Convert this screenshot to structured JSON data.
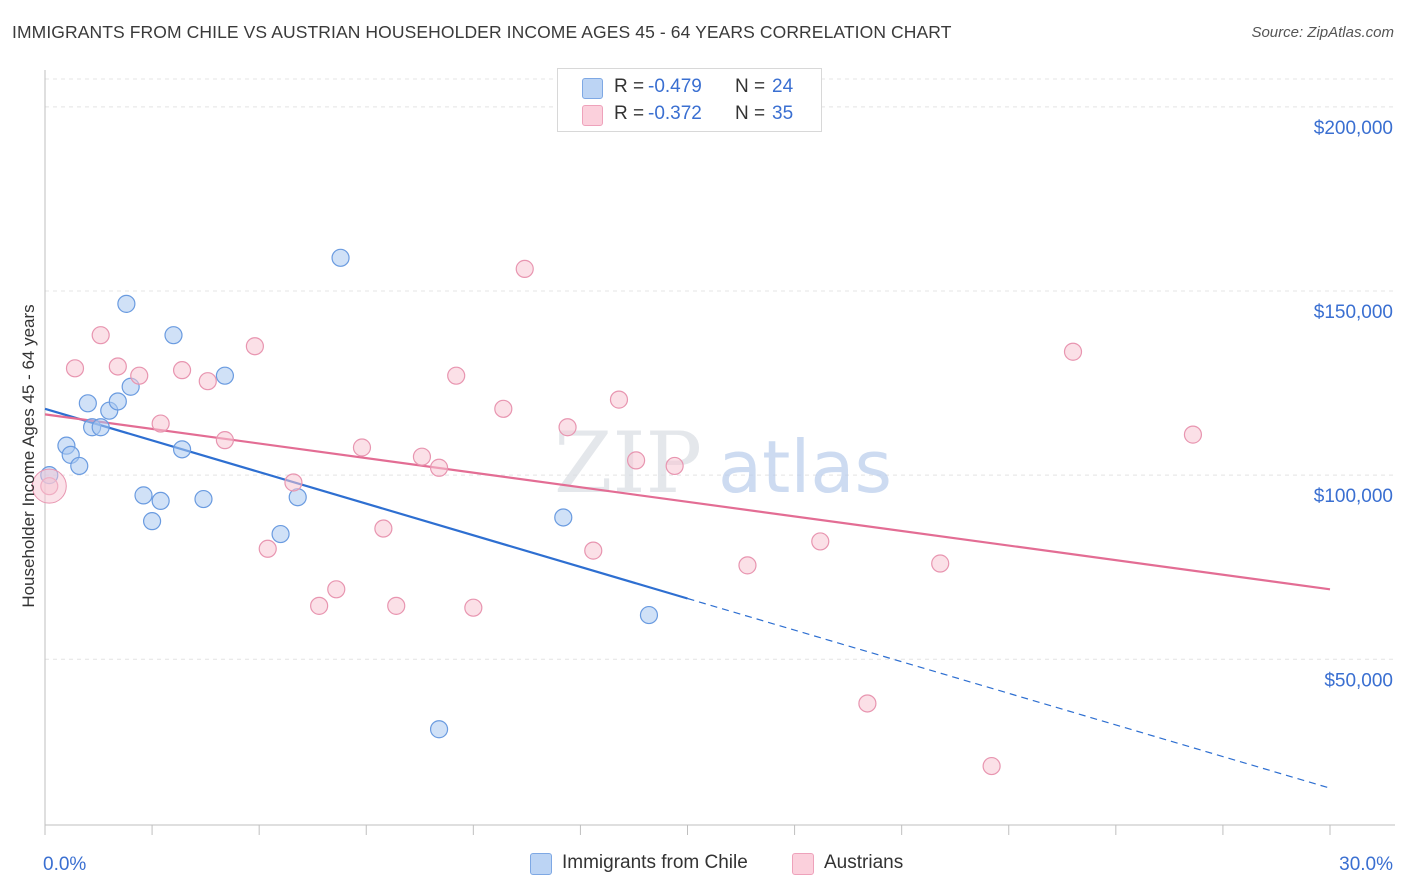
{
  "title": "IMMIGRANTS FROM CHILE VS AUSTRIAN HOUSEHOLDER INCOME AGES 45 - 64 YEARS CORRELATION CHART",
  "source": "Source: ZipAtlas.com",
  "watermark": {
    "zip": "ZIP",
    "atlas": "atlas"
  },
  "legend": {
    "r_label": "R =",
    "n_label": "N =",
    "rows": [
      {
        "r_value": "-0.479",
        "n_value": "24"
      },
      {
        "r_value": "-0.372",
        "n_value": "35"
      }
    ]
  },
  "chart_data": {
    "type": "scatter",
    "ylabel": "Householder Income Ages 45 - 64 years",
    "xlim": [
      0,
      30
    ],
    "ylim": [
      5000,
      210000
    ],
    "x_tick_labels": [
      "0.0%",
      "30.0%"
    ],
    "y_ticks": [
      50000,
      100000,
      150000,
      200000
    ],
    "y_tick_labels": [
      "$50,000",
      "$100,000",
      "$150,000",
      "$200,000"
    ],
    "grid": true,
    "legend_position": "bottom",
    "series": [
      {
        "name": "Immigrants from Chile",
        "color": "#a9c8f0",
        "stroke": "#6a9be0",
        "line_color": "#2e6fd1",
        "points": [
          [
            0.1,
            100000
          ],
          [
            0.5,
            108000
          ],
          [
            0.6,
            105500
          ],
          [
            0.8,
            102500
          ],
          [
            1.0,
            119500
          ],
          [
            1.1,
            113000
          ],
          [
            1.3,
            113000
          ],
          [
            1.5,
            117500
          ],
          [
            1.7,
            120000
          ],
          [
            1.9,
            146500
          ],
          [
            2.0,
            124000
          ],
          [
            2.3,
            94500
          ],
          [
            2.5,
            87500
          ],
          [
            2.7,
            93000
          ],
          [
            3.0,
            138000
          ],
          [
            3.2,
            107000
          ],
          [
            3.7,
            93500
          ],
          [
            4.2,
            127000
          ],
          [
            5.5,
            84000
          ],
          [
            5.9,
            94000
          ],
          [
            6.9,
            159000
          ],
          [
            9.2,
            31000
          ],
          [
            12.1,
            88500
          ],
          [
            14.1,
            62000
          ]
        ],
        "trend": {
          "x0": 0,
          "y0": 118000,
          "x1": 15.0,
          "y1": 66500,
          "dash_to_x": 30,
          "dash_to_y": 15000
        }
      },
      {
        "name": "Austrians",
        "color": "#f8c6d4",
        "stroke": "#e895b0",
        "line_color": "#e36d94",
        "points": [
          [
            0.1,
            97000
          ],
          [
            0.7,
            129000
          ],
          [
            1.3,
            138000
          ],
          [
            1.7,
            129500
          ],
          [
            2.2,
            127000
          ],
          [
            2.7,
            114000
          ],
          [
            3.2,
            128500
          ],
          [
            3.8,
            125500
          ],
          [
            4.2,
            109500
          ],
          [
            4.9,
            135000
          ],
          [
            5.2,
            80000
          ],
          [
            5.8,
            98000
          ],
          [
            6.4,
            64500
          ],
          [
            6.8,
            69000
          ],
          [
            7.4,
            107500
          ],
          [
            7.9,
            85500
          ],
          [
            8.2,
            64500
          ],
          [
            8.8,
            105000
          ],
          [
            9.2,
            102000
          ],
          [
            9.6,
            127000
          ],
          [
            10.0,
            64000
          ],
          [
            10.7,
            118000
          ],
          [
            11.2,
            156000
          ],
          [
            12.2,
            113000
          ],
          [
            12.8,
            79500
          ],
          [
            13.4,
            120500
          ],
          [
            13.8,
            104000
          ],
          [
            14.7,
            102500
          ],
          [
            16.4,
            75500
          ],
          [
            18.1,
            82000
          ],
          [
            19.2,
            38000
          ],
          [
            20.9,
            76000
          ],
          [
            22.1,
            21000
          ],
          [
            24.0,
            133500
          ],
          [
            26.8,
            111000
          ]
        ],
        "trend": {
          "x0": 0,
          "y0": 116500,
          "x1": 30,
          "y1": 69000
        }
      }
    ]
  }
}
